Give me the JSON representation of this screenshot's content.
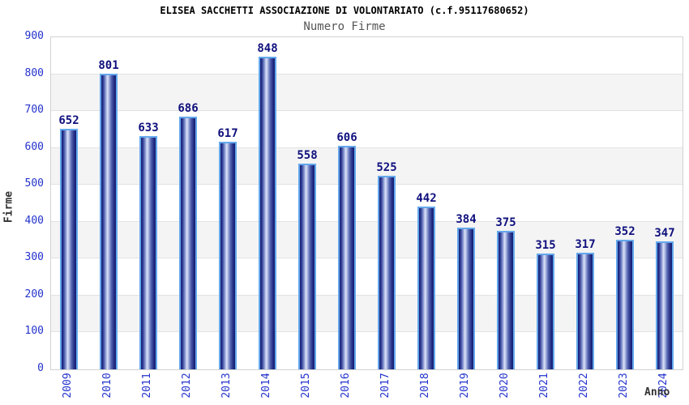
{
  "chart_data": {
    "type": "bar",
    "title": "ELISEA SACCHETTI ASSOCIAZIONE DI VOLONTARIATO (c.f.95117680652)",
    "subtitle": "Numero Firme",
    "xlabel": "Anno",
    "ylabel": "Firme",
    "categories": [
      "2009",
      "2010",
      "2011",
      "2012",
      "2013",
      "2014",
      "2015",
      "2016",
      "2017",
      "2018",
      "2019",
      "2020",
      "2021",
      "2022",
      "2023",
      "2024"
    ],
    "values": [
      652,
      801,
      633,
      686,
      617,
      848,
      558,
      606,
      525,
      442,
      384,
      375,
      315,
      317,
      352,
      347
    ],
    "ylim": [
      0,
      900
    ],
    "ytick_step": 100,
    "grid": true,
    "legend_position": "none",
    "colors": {
      "tick_label": "#2433cc",
      "value_label": "#10107e",
      "title": "#000000",
      "subtitle": "#555555",
      "axis_title": "#333333",
      "band_gray": "#f4f4f4",
      "gridline": "#e2e2e2",
      "plot_border": "#d2d2d2",
      "bar_dark": "#141d74",
      "bar_light": "#dde4f8",
      "bar_border": "#64a8ec"
    }
  }
}
